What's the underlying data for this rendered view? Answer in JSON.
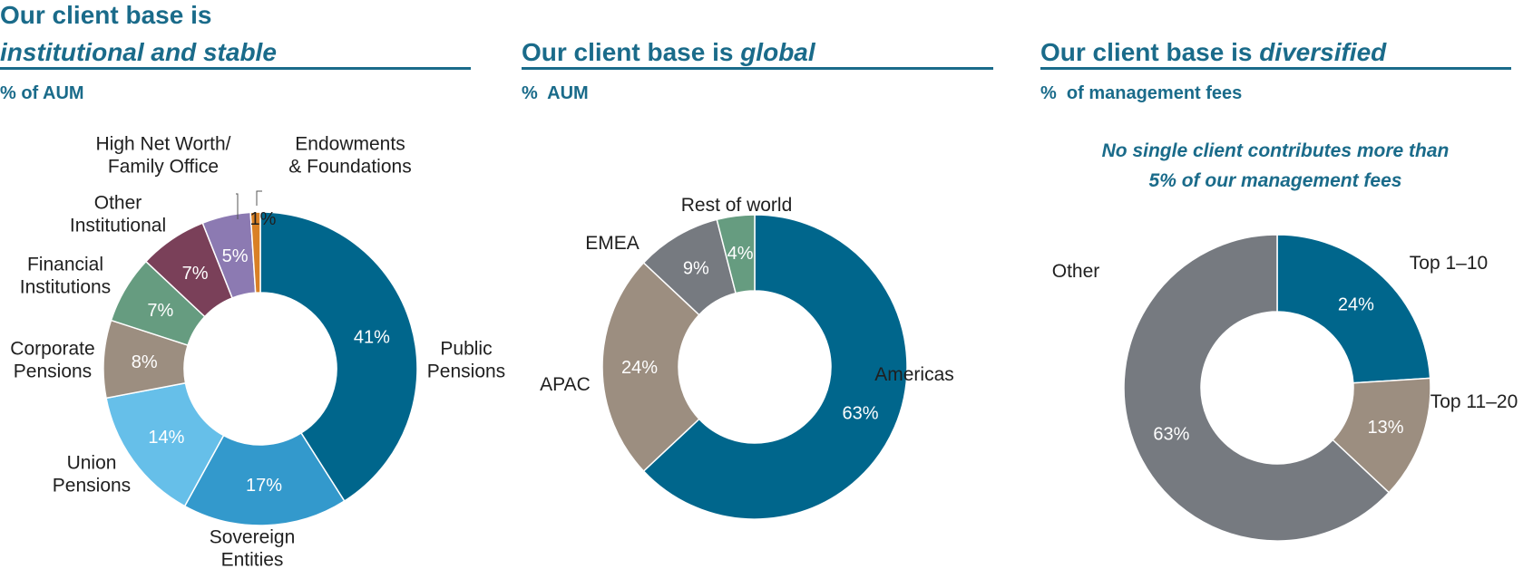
{
  "panels": [
    {
      "title_line1": "Our client base is",
      "title_line2_emph": "institutional and stable",
      "subtitle": "% of AUM"
    },
    {
      "title_plain": "Our client base is ",
      "title_emph": "global",
      "subtitle": "%  AUM"
    },
    {
      "title_plain": "Our client base is ",
      "title_emph": "diversified",
      "subtitle": "%  of management fees",
      "note_line1": "No single client contributes more than",
      "note_line2": "5% of our management fees"
    }
  ],
  "chart_data": [
    {
      "type": "pie",
      "donut": true,
      "series": [
        {
          "values": [
            41,
            17,
            14,
            8,
            7,
            7,
            5,
            1
          ],
          "value_labels": [
            "41%",
            "17%",
            "14%",
            "8%",
            "7%",
            "7%",
            "5%",
            "1%"
          ],
          "labels": [
            [
              "Public",
              "Pensions"
            ],
            [
              "Sovereign",
              "Entities"
            ],
            [
              "Union",
              "Pensions"
            ],
            [
              "Corporate",
              "Pensions"
            ],
            [
              "Financial",
              "Institutions"
            ],
            [
              "Other",
              "Institutional"
            ],
            [
              "High Net Worth/",
              "Family Office"
            ],
            [
              "Endowments",
              "& Foundations"
            ]
          ],
          "colors": [
            "#00668c",
            "#3399cc",
            "#66bfe9",
            "#9c8e80",
            "#669c80",
            "#7a4059",
            "#8c7ab2",
            "#d98026"
          ]
        }
      ]
    },
    {
      "type": "pie",
      "donut": true,
      "series": [
        {
          "values": [
            63,
            24,
            9,
            4
          ],
          "value_labels": [
            "63%",
            "24%",
            "9%",
            "4%"
          ],
          "labels": [
            [
              "Americas"
            ],
            [
              "APAC"
            ],
            [
              "EMEA"
            ],
            [
              "Rest of world"
            ]
          ],
          "colors": [
            "#00668c",
            "#9c8e80",
            "#767a80",
            "#669c80"
          ]
        }
      ]
    },
    {
      "type": "pie",
      "donut": true,
      "series": [
        {
          "values": [
            24,
            13,
            63
          ],
          "value_labels": [
            "24%",
            "13%",
            "63%"
          ],
          "labels": [
            [
              "Top 1–10"
            ],
            [
              "Top 11–20"
            ],
            [
              "Other"
            ]
          ],
          "colors": [
            "#00668c",
            "#9c8e80",
            "#767a80"
          ]
        }
      ]
    }
  ]
}
